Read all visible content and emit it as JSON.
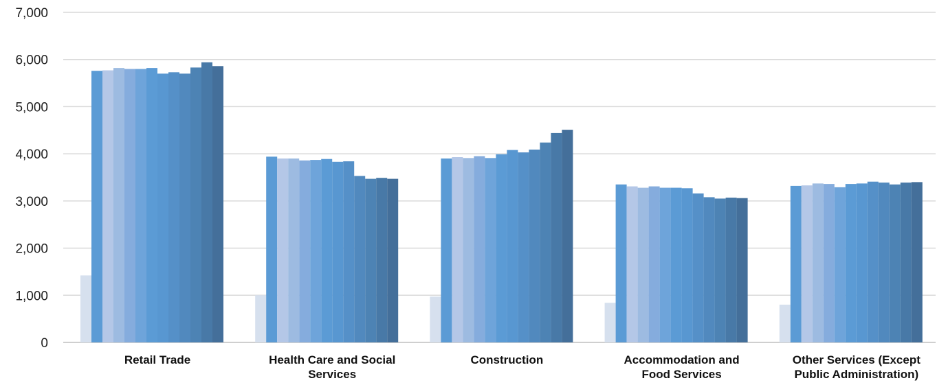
{
  "chart_data": {
    "type": "bar",
    "title": "",
    "xlabel": "",
    "ylabel": "",
    "ylim": [
      0,
      7000
    ],
    "yticks": [
      0,
      1000,
      2000,
      3000,
      4000,
      5000,
      6000,
      7000
    ],
    "ytick_labels": [
      "0",
      "1,000",
      "2,000",
      "3,000",
      "4,000",
      "5,000",
      "6,000",
      "7,000"
    ],
    "grid": true,
    "legend": "none",
    "categories": [
      [
        "Retail Trade"
      ],
      [
        "Health Care and Social",
        "Services"
      ],
      [
        "Construction"
      ],
      [
        "Accommodation and",
        "Food Services"
      ],
      [
        "Other Services (Except",
        "Public Administration)"
      ]
    ],
    "series_colors": [
      "#d6e0ee",
      "#5b9bd5",
      "#b4c7e7",
      "#9dbbe1",
      "#85acdd",
      "#6ea4da",
      "#5b9bd5",
      "#5897d1",
      "#5590c8",
      "#5189be",
      "#4d83b4",
      "#4879a7",
      "#446f9a",
      "#3f678e"
    ],
    "series": [
      {
        "values": [
          1420,
          1000,
          970,
          840,
          800
        ]
      },
      {
        "values": [
          5760,
          3940,
          3900,
          3350,
          3320
        ]
      },
      {
        "values": [
          5770,
          3900,
          3930,
          3310,
          3330
        ]
      },
      {
        "values": [
          5820,
          3900,
          3910,
          3280,
          3370
        ]
      },
      {
        "values": [
          5800,
          3860,
          3950,
          3310,
          3360
        ]
      },
      {
        "values": [
          5800,
          3870,
          3910,
          3280,
          3290
        ]
      },
      {
        "values": [
          5820,
          3890,
          3990,
          3280,
          3360
        ]
      },
      {
        "values": [
          5700,
          3830,
          4080,
          3270,
          3370
        ]
      },
      {
        "values": [
          5730,
          3840,
          4030,
          3160,
          3410
        ]
      },
      {
        "values": [
          5700,
          3530,
          4090,
          3080,
          3390
        ]
      },
      {
        "values": [
          5830,
          3470,
          4240,
          3050,
          3350
        ]
      },
      {
        "values": [
          5940,
          3490,
          4440,
          3070,
          3390
        ]
      },
      {
        "values": [
          5860,
          3470,
          4510,
          3060,
          3400
        ]
      }
    ]
  }
}
